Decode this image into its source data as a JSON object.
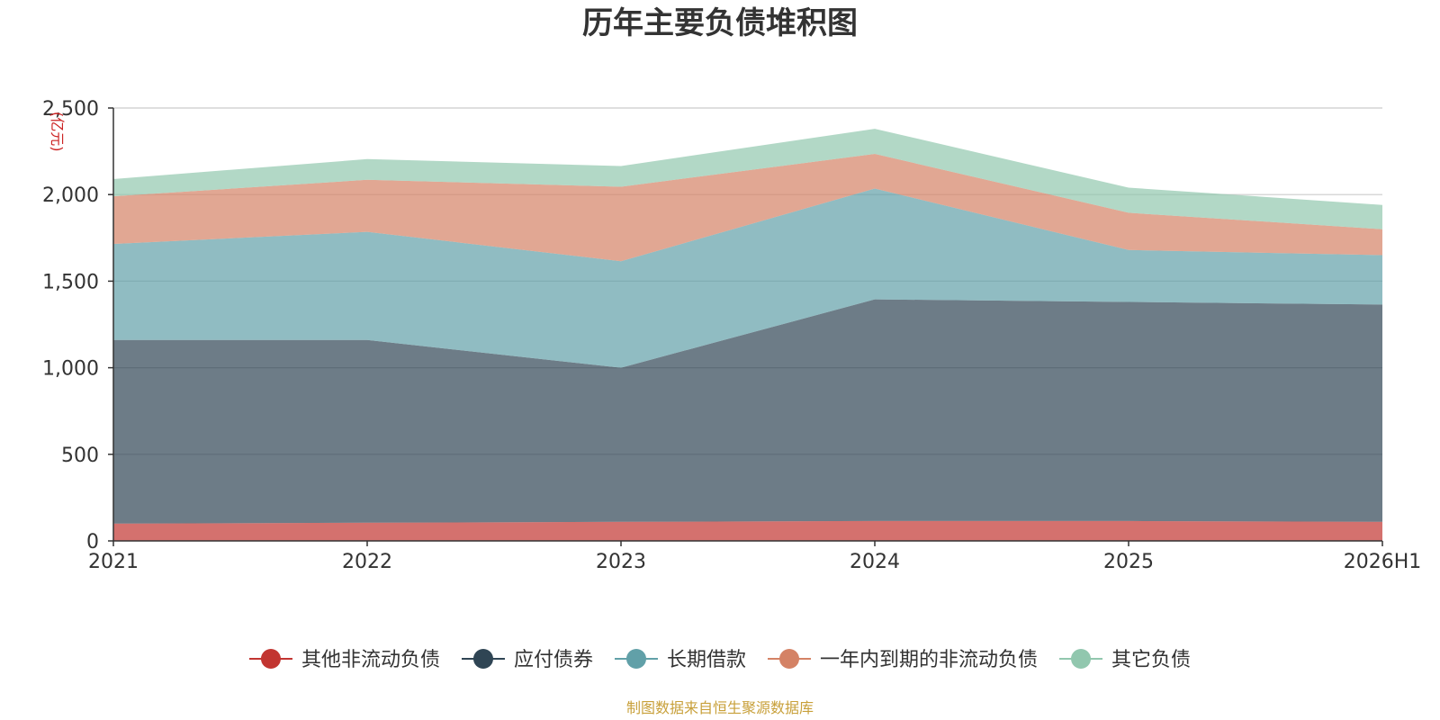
{
  "chart_data": {
    "type": "area",
    "stacked": true,
    "title": "历年主要负债堆积图",
    "unit_label": "(亿元)",
    "categories": [
      "2021",
      "2022",
      "2023",
      "2024",
      "2025",
      "2026H1"
    ],
    "ylim": [
      0,
      2500
    ],
    "yticks": [
      0,
      500,
      1000,
      1500,
      2000,
      2500
    ],
    "ytick_labels": [
      "0",
      "500",
      "1,000",
      "1,500",
      "2,000",
      "2,500"
    ],
    "grid": true,
    "legend_position": "bottom",
    "series": [
      {
        "name": "其他非流动负债",
        "color": "#c23531",
        "values": [
          100,
          105,
          110,
          115,
          115,
          110
        ]
      },
      {
        "name": "应付债券",
        "color": "#2f4554",
        "values": [
          1060,
          1055,
          890,
          1280,
          1265,
          1255
        ]
      },
      {
        "name": "长期借款",
        "color": "#61a0a8",
        "values": [
          555,
          625,
          615,
          640,
          300,
          285
        ]
      },
      {
        "name": "一年内到期的非流动负债",
        "color": "#d48265",
        "values": [
          275,
          300,
          430,
          200,
          215,
          150
        ]
      },
      {
        "name": "其它负债",
        "color": "#91c7ae",
        "values": [
          100,
          120,
          120,
          145,
          145,
          140
        ]
      }
    ],
    "source": "制图数据来自恒生聚源数据库"
  }
}
